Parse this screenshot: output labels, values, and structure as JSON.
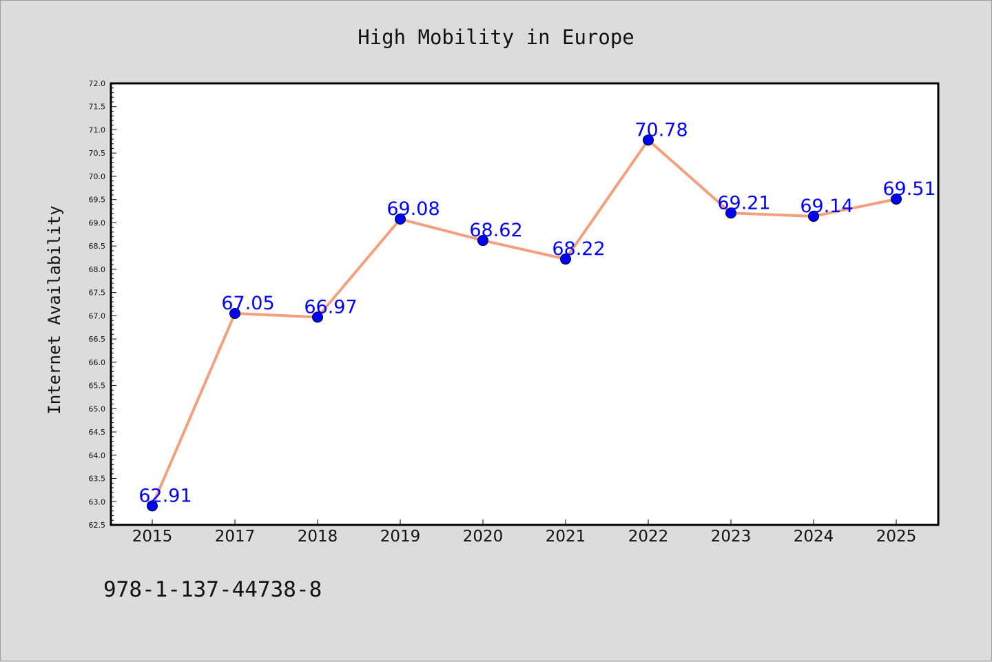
{
  "chart_data": {
    "type": "line",
    "title": "High Mobility in Europe",
    "xlabel": "",
    "ylabel": "Internet Availability",
    "categories": [
      "2015",
      "2017",
      "2018",
      "2019",
      "2020",
      "2021",
      "2022",
      "2023",
      "2024",
      "2025"
    ],
    "series": [
      {
        "values": [
          62.91,
          67.05,
          66.97,
          69.08,
          68.62,
          68.22,
          70.78,
          69.21,
          69.14,
          69.51
        ],
        "labels": [
          "62.91",
          "67.05",
          "66.97",
          "69.08",
          "68.62",
          "68.22",
          "70.78",
          "69.21",
          "69.14",
          "69.51"
        ],
        "line_color": "#f4a07e",
        "marker_color": "#0000ff"
      }
    ],
    "ylim": [
      62.5,
      72.0
    ],
    "yticks": [
      "62.5",
      "63.0",
      "63.5",
      "64.0",
      "64.5",
      "65.0",
      "65.5",
      "66.0",
      "66.5",
      "67.0",
      "67.5",
      "68.0",
      "68.5",
      "69.0",
      "69.5",
      "70.0",
      "70.5",
      "71.0",
      "71.5",
      "72.0"
    ],
    "grid": false,
    "legend": "none"
  },
  "footer": {
    "code": "978-1-137-44738-8"
  },
  "colors": {
    "background": "#dcdcdc",
    "plot_background": "#ffffff",
    "label_color": "#0000ff"
  }
}
